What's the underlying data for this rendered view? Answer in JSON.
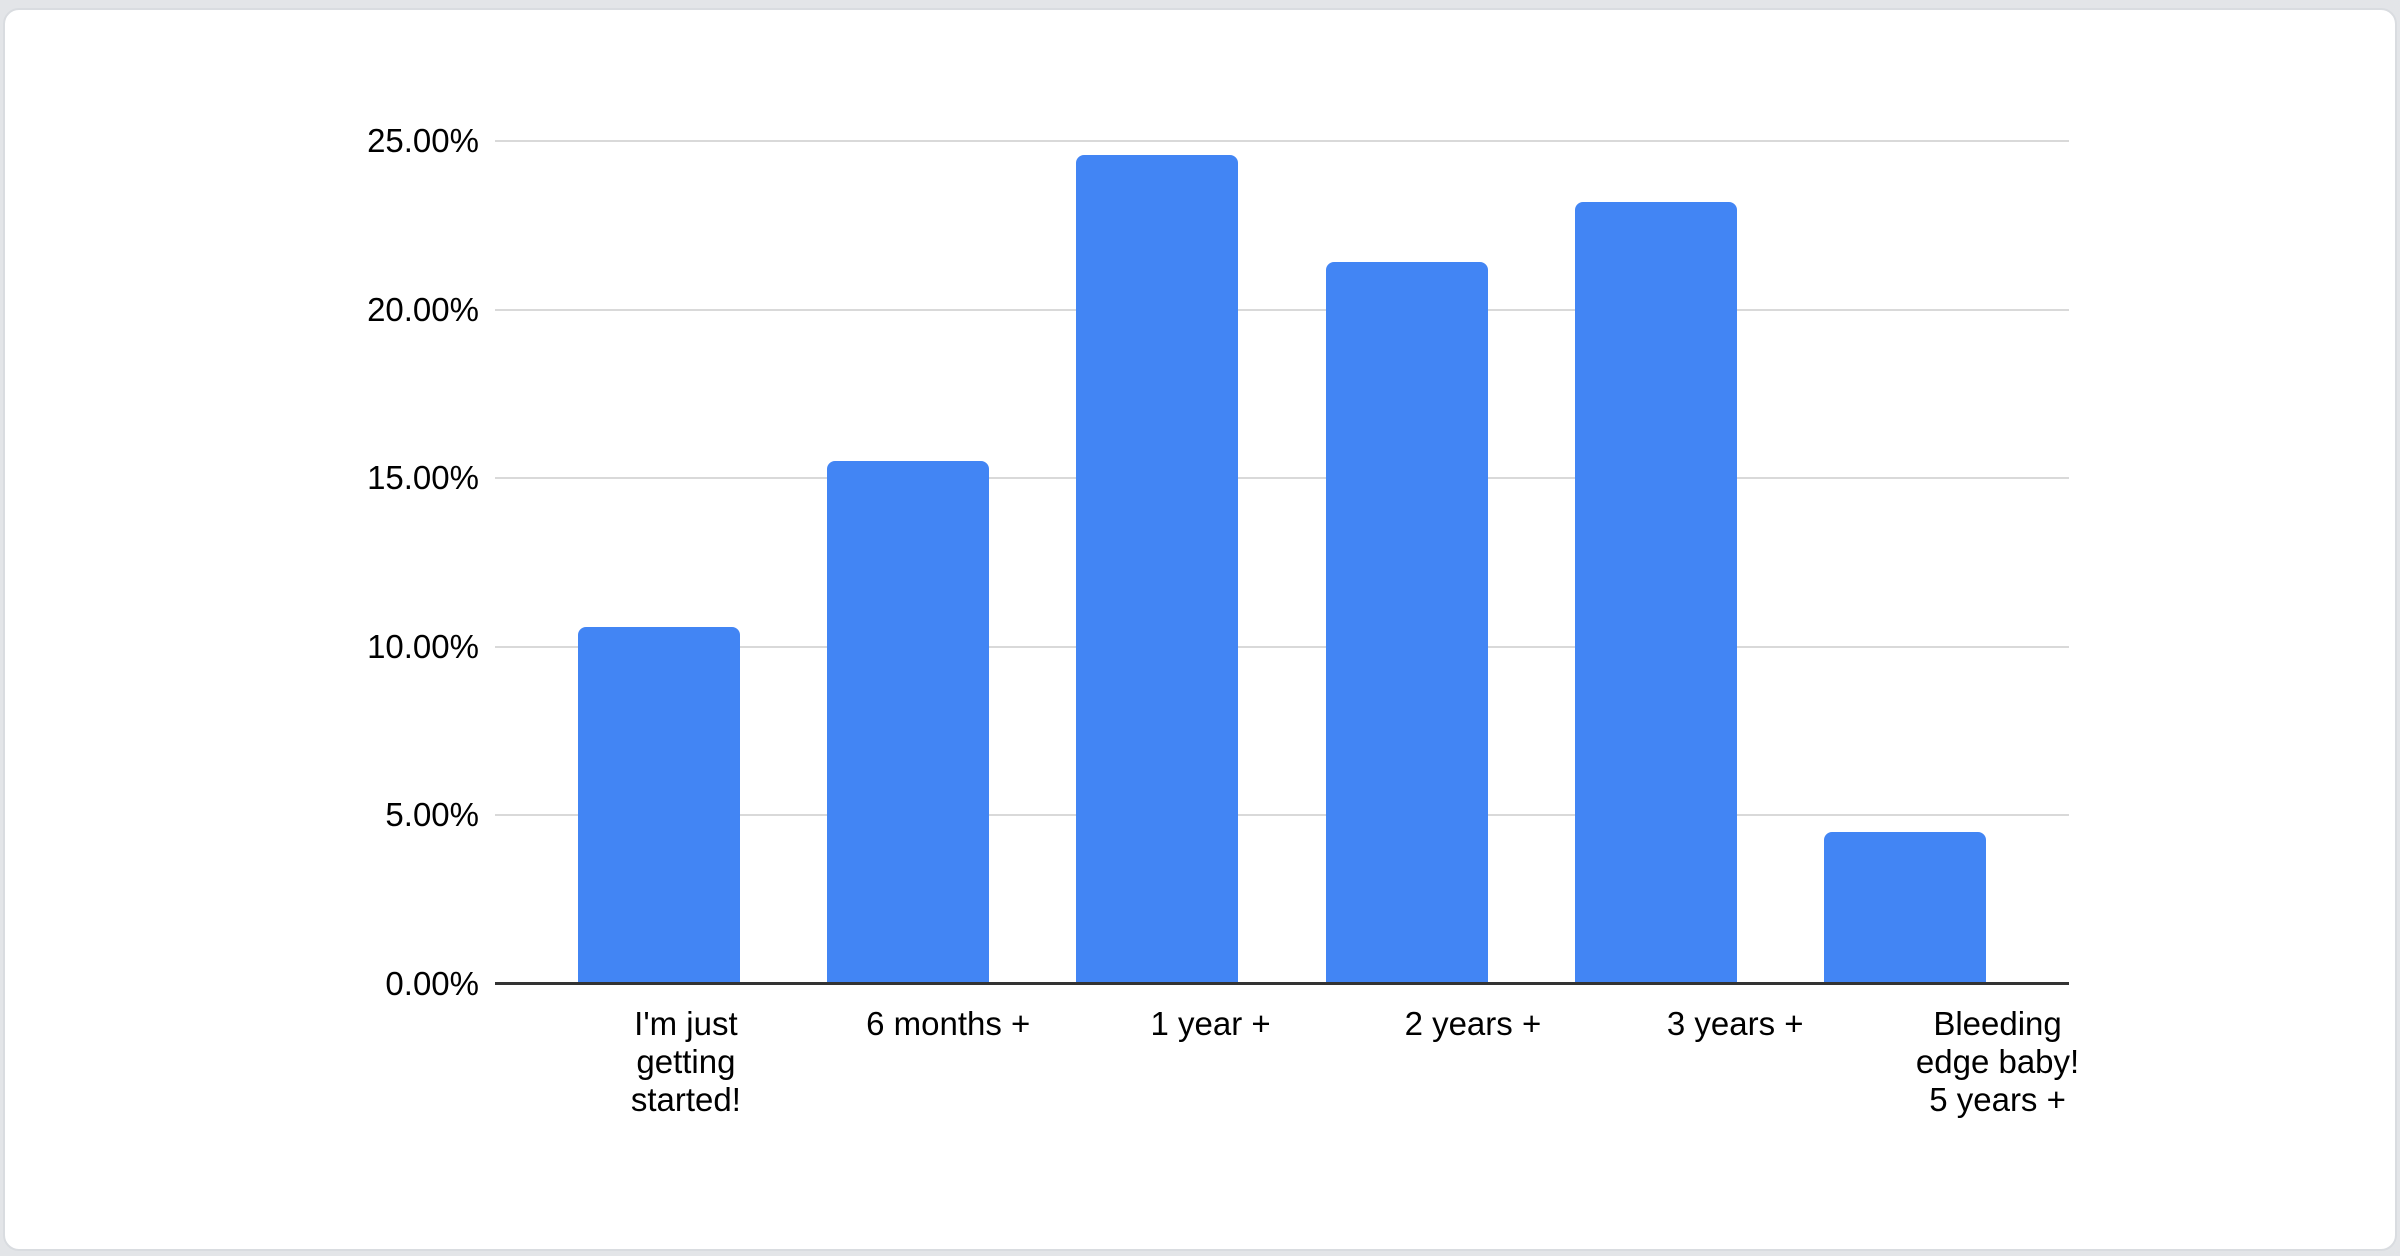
{
  "card": {
    "background": "#ffffff",
    "page_background": "#e3e5e8"
  },
  "chart_data": {
    "type": "bar",
    "title": "",
    "xlabel": "",
    "ylabel": "",
    "categories": [
      "I'm just getting started!",
      "6 months +",
      "1 year +",
      "2 years +",
      "3 years +",
      "Bleeding edge baby! 5 years +"
    ],
    "category_lines": [
      [
        "I'm just",
        "getting",
        "started!"
      ],
      [
        "6 months +"
      ],
      [
        "1 year +"
      ],
      [
        "2 years +"
      ],
      [
        "3 years +"
      ],
      [
        "Bleeding",
        "edge baby!",
        "5 years +"
      ]
    ],
    "values": [
      10.6,
      15.5,
      24.6,
      21.4,
      23.2,
      4.5
    ],
    "value_unit": "percent",
    "ylim": [
      0,
      25
    ],
    "y_ticks": [
      {
        "label": "0.00%",
        "value": 0
      },
      {
        "label": "5.00%",
        "value": 5
      },
      {
        "label": "10.00%",
        "value": 10
      },
      {
        "label": "15.00%",
        "value": 15
      },
      {
        "label": "20.00%",
        "value": 20
      },
      {
        "label": "25.00%",
        "value": 25
      }
    ],
    "grid": true,
    "legend": "none",
    "bar_color": "#4285f4",
    "gridline_color": "#d9d9d9",
    "axis_line_color": "#333333",
    "label_color": "#000000"
  }
}
